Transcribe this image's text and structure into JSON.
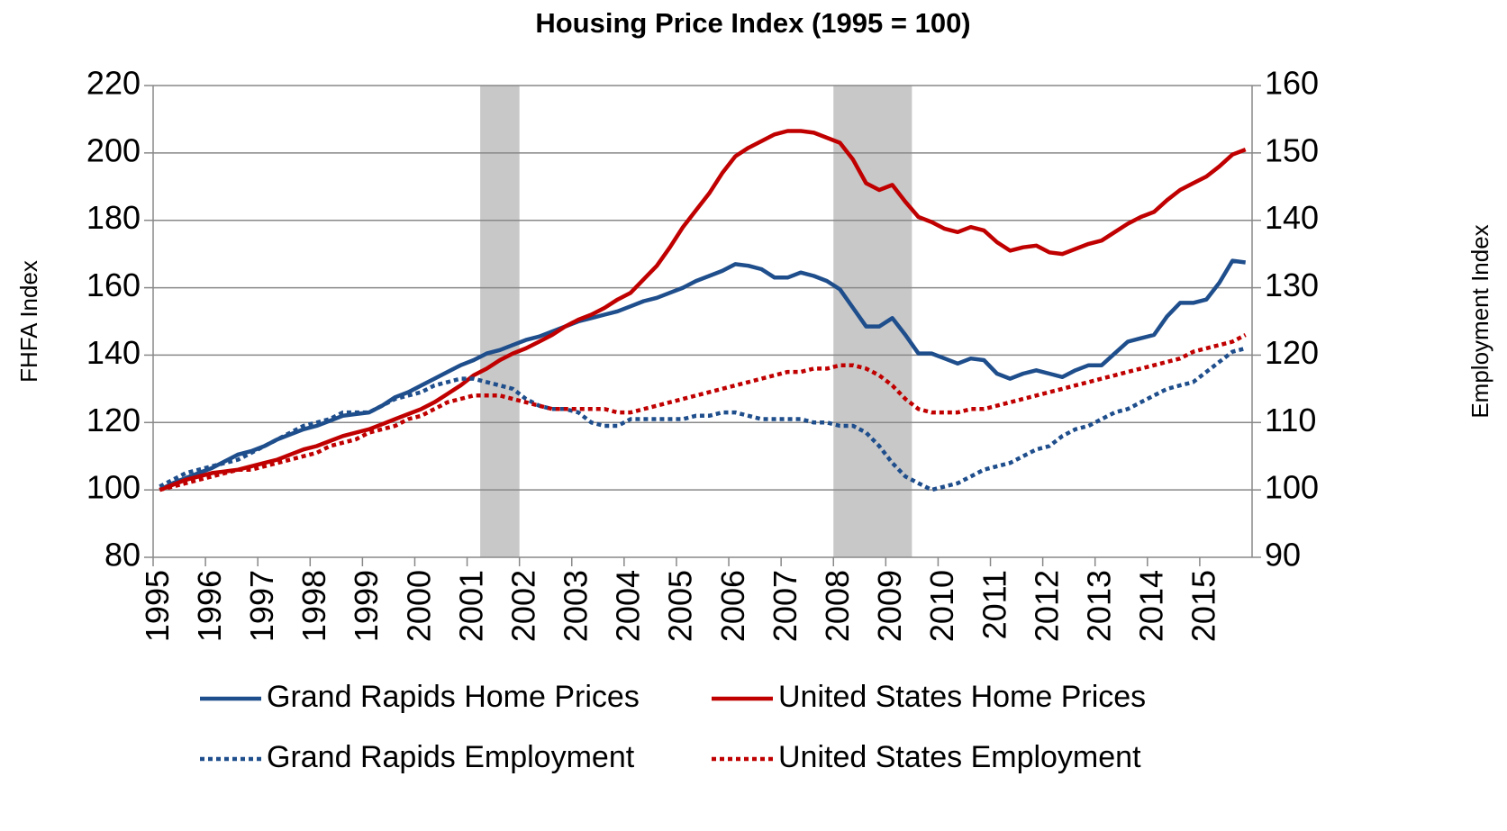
{
  "chart_data": {
    "type": "line",
    "title": "Housing Price Index (1995 = 100)",
    "y_label": "FHFA Index",
    "y2_label": "Employment Index",
    "categories": [
      "1995",
      null,
      null,
      null,
      "1996",
      null,
      null,
      null,
      "1997",
      null,
      null,
      null,
      "1998",
      null,
      null,
      null,
      "1999",
      null,
      null,
      null,
      "2000",
      null,
      null,
      null,
      "2001",
      null,
      null,
      null,
      "2002",
      null,
      null,
      null,
      "2003",
      null,
      null,
      null,
      "2004",
      null,
      null,
      null,
      "2005",
      null,
      null,
      null,
      "2006",
      null,
      null,
      null,
      "2007",
      null,
      null,
      null,
      "2008",
      null,
      null,
      null,
      "2009",
      null,
      null,
      null,
      "2010",
      null,
      null,
      null,
      "2011",
      null,
      null,
      null,
      "2012",
      null,
      null,
      null,
      "2013",
      null,
      null,
      null,
      "2014",
      null,
      null,
      null,
      "2015",
      null,
      null,
      null
    ],
    "shaded_ranges": [
      [
        25,
        27
      ],
      [
        52,
        57
      ]
    ],
    "ylim": [
      80,
      220
    ],
    "yticks": [
      80,
      100,
      120,
      140,
      160,
      180,
      200,
      220
    ],
    "y2lim": [
      90,
      160
    ],
    "y2ticks": [
      90,
      100,
      110,
      120,
      130,
      140,
      150,
      160
    ],
    "grid": true,
    "legend": "bottom",
    "series": [
      {
        "name": "Grand Rapids Home Prices",
        "color": "#1f4e8c",
        "style": "solid",
        "values": [
          100,
          102,
          103.5,
          105,
          106.5,
          108.5,
          110.5,
          111.5,
          113,
          115,
          116.5,
          118,
          119,
          120.5,
          122,
          122.5,
          123,
          125,
          127.5,
          129,
          131,
          133,
          135,
          137,
          138.5,
          140.5,
          141.5,
          143,
          144.5,
          145.5,
          147,
          148.5,
          150,
          151,
          152,
          153,
          154.5,
          156,
          157,
          158.5,
          160,
          162,
          163.5,
          165,
          167,
          166.5,
          165.5,
          163,
          163,
          164.5,
          163.5,
          162,
          159.5,
          154,
          148.5,
          148.5,
          151,
          146,
          140.5,
          140.5,
          139,
          137.5,
          139,
          138.5,
          134.5,
          133,
          134.5,
          135.5,
          134.5,
          133.5,
          135.5,
          137,
          137,
          140.5,
          144,
          145,
          146,
          151.5,
          155.5,
          155.5,
          156.5,
          161.5,
          168,
          167.5
        ]
      },
      {
        "name": "United States Home Prices",
        "color": "#c00000",
        "style": "solid",
        "values": [
          100,
          101.5,
          103,
          104,
          105,
          105.5,
          106,
          107,
          108,
          109,
          110.5,
          112,
          113,
          114.5,
          116,
          117,
          118,
          119.5,
          121,
          122.5,
          124,
          126,
          128.5,
          131,
          134,
          136,
          138.5,
          140.5,
          142,
          144,
          146,
          148.5,
          150.5,
          152,
          154,
          156.5,
          158.5,
          162.5,
          166.5,
          172,
          178,
          183,
          188,
          194,
          199,
          201.5,
          203.5,
          205.5,
          206.5,
          206.5,
          206,
          204.5,
          203,
          198,
          191,
          189,
          190.5,
          185.5,
          181,
          179.5,
          177.5,
          176.5,
          178,
          177,
          173.5,
          171,
          172,
          172.5,
          170.5,
          170,
          171.5,
          173,
          174,
          176.5,
          179,
          181,
          182.5,
          186,
          189,
          191,
          193,
          196,
          199.5,
          201
        ]
      },
      {
        "name": "Grand Rapids Employment",
        "color": "#1f4e8c",
        "style": "dotted",
        "axis": "y2",
        "values": [
          100.5,
          101.5,
          102.5,
          103,
          103.5,
          104,
          104.5,
          105.5,
          106.5,
          107.5,
          108.5,
          109.5,
          110,
          110.5,
          111.5,
          111.5,
          111.5,
          112.5,
          113.5,
          114,
          114.5,
          115.5,
          116,
          116.5,
          116.5,
          116,
          115.5,
          115,
          113.5,
          112.5,
          112,
          112,
          111.5,
          110,
          109.5,
          109.5,
          110.5,
          110.5,
          110.5,
          110.5,
          110.5,
          111,
          111,
          111.5,
          111.5,
          111,
          110.5,
          110.5,
          110.5,
          110.5,
          110,
          110,
          109.5,
          109.5,
          108.5,
          106.5,
          104,
          102,
          101,
          100,
          100.5,
          101,
          102,
          103,
          103.5,
          104,
          105,
          106,
          106.5,
          108,
          109,
          109.5,
          110.5,
          111.5,
          112,
          113,
          114,
          115,
          115.5,
          116,
          117.5,
          119,
          120.5,
          121
        ]
      },
      {
        "name": "United States Employment",
        "color": "#c00000",
        "style": "dotted",
        "axis": "y2",
        "values": [
          100,
          100.5,
          101,
          101.5,
          102,
          102.5,
          103,
          103,
          103.5,
          104,
          104.5,
          105,
          105.5,
          106.5,
          107,
          107.5,
          108.5,
          109,
          109.5,
          110.5,
          111,
          112,
          113,
          113.5,
          114,
          114,
          114,
          113.5,
          113,
          112.5,
          112,
          112,
          112,
          112,
          112,
          111.5,
          111.5,
          112,
          112.5,
          113,
          113.5,
          114,
          114.5,
          115,
          115.5,
          116,
          116.5,
          117,
          117.5,
          117.5,
          118,
          118,
          118.5,
          118.5,
          118,
          117,
          115.5,
          113.5,
          112,
          111.5,
          111.5,
          111.5,
          112,
          112,
          112.5,
          113,
          113.5,
          114,
          114.5,
          115,
          115.5,
          116,
          116.5,
          117,
          117.5,
          118,
          118.5,
          119,
          119.5,
          120.5,
          121,
          121.5,
          122,
          123
        ]
      }
    ]
  }
}
